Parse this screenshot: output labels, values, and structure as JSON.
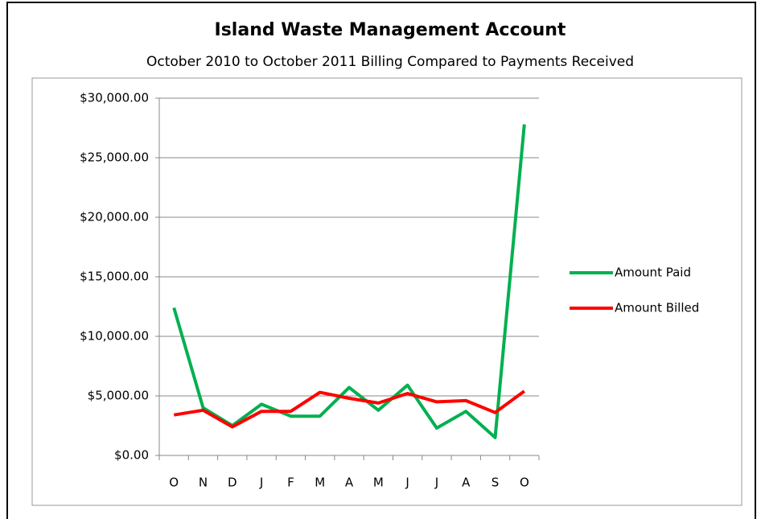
{
  "chart_data": {
    "type": "line",
    "title": "Island Waste Management Account",
    "subtitle": "October 2010 to October 2011 Billing Compared to Payments Received",
    "categories": [
      "O",
      "N",
      "D",
      "J",
      "F",
      "M",
      "A",
      "M",
      "J",
      "J",
      "A",
      "S",
      "O"
    ],
    "series": [
      {
        "name": "Amount Paid",
        "color": "#00b050",
        "values": [
          12400,
          4000,
          2500,
          4300,
          3300,
          3300,
          5700,
          3800,
          5900,
          2300,
          3700,
          1500,
          27800
        ]
      },
      {
        "name": "Amount Billed",
        "color": "#ff0000",
        "values": [
          3400,
          3800,
          2400,
          3700,
          3700,
          5300,
          4800,
          4400,
          5200,
          4500,
          4600,
          3600,
          5400
        ]
      }
    ],
    "ylim": [
      0,
      30000
    ],
    "yticks": [
      {
        "value": 0,
        "label": "$0.00"
      },
      {
        "value": 5000,
        "label": "$5,000.00"
      },
      {
        "value": 10000,
        "label": "$10,000.00"
      },
      {
        "value": 15000,
        "label": "$15,000.00"
      },
      {
        "value": 20000,
        "label": "$20,000.00"
      },
      {
        "value": 25000,
        "label": "$25,000.00"
      },
      {
        "value": 30000,
        "label": "$30,000.00"
      }
    ],
    "grid": true,
    "legend": "right"
  }
}
